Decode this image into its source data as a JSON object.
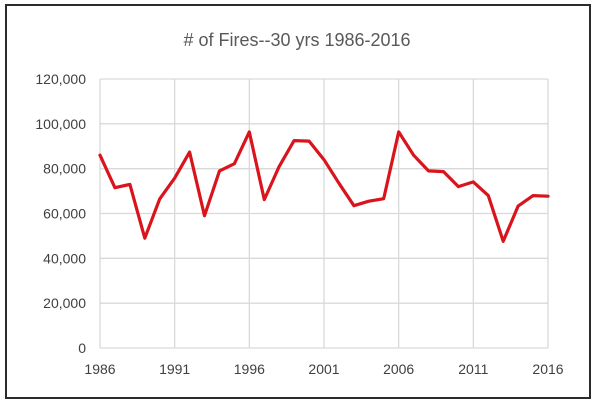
{
  "chart_data": {
    "type": "line",
    "title": "# of Fires--30 yrs 1986-2016",
    "xlabel": "",
    "ylabel": "",
    "xlim": [
      1986,
      2016
    ],
    "ylim": [
      0,
      120000
    ],
    "x_ticks": [
      "1986",
      "1991",
      "1996",
      "2001",
      "2006",
      "2011",
      "2016"
    ],
    "x_tick_values": [
      1986,
      1991,
      1996,
      2001,
      2006,
      2011,
      2016
    ],
    "y_ticks": [
      "0",
      "20,000",
      "40,000",
      "60,000",
      "80,000",
      "100,000",
      "120,000"
    ],
    "y_tick_values": [
      0,
      20000,
      40000,
      60000,
      80000,
      100000,
      120000
    ],
    "grid": true,
    "legend": "none",
    "series": [
      {
        "color": "#d9141d",
        "x": [
          1986,
          1987,
          1988,
          1989,
          1990,
          1991,
          1992,
          1993,
          1994,
          1995,
          1996,
          1997,
          1998,
          1999,
          2000,
          2001,
          2002,
          2003,
          2004,
          2005,
          2006,
          2007,
          2008,
          2009,
          2010,
          2011,
          2012,
          2013,
          2014,
          2015,
          2016
        ],
        "y": [
          86000,
          71500,
          73000,
          49000,
          66500,
          75800,
          87400,
          59000,
          79000,
          82200,
          96400,
          66200,
          81000,
          92500,
          92300,
          84000,
          73500,
          63500,
          65500,
          66600,
          96400,
          86000,
          79000,
          78700,
          72000,
          74100,
          68000,
          47600,
          63300,
          68000,
          67700
        ]
      }
    ]
  }
}
